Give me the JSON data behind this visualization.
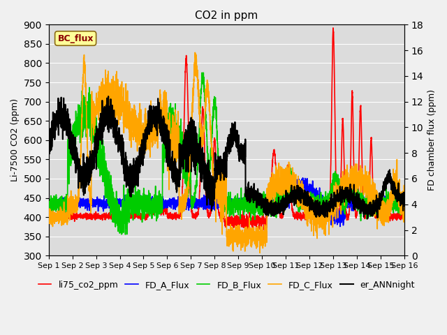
{
  "title": "CO2 in ppm",
  "ylabel_left": "Li-7500 CO2 (ppm)",
  "ylabel_right": "FD chamber flux (ppm)",
  "ylim_left": [
    300,
    900
  ],
  "ylim_right": [
    0,
    18
  ],
  "yticks_left": [
    300,
    350,
    400,
    450,
    500,
    550,
    600,
    650,
    700,
    750,
    800,
    850,
    900
  ],
  "yticks_right": [
    0,
    2,
    4,
    6,
    8,
    10,
    12,
    14,
    16,
    18
  ],
  "xtick_labels": [
    "Sep 1",
    "Sep 2",
    "Sep 3",
    "Sep 4",
    "Sep 5",
    "Sep 6",
    "Sep 7",
    "Sep 8",
    "Sep 9",
    "Sep 10",
    "Sep 11",
    "Sep 12",
    "Sep 13",
    "Sep 14",
    "Sep 15",
    "Sep 16"
  ],
  "legend_entries": [
    "li75_co2_ppm",
    "FD_A_Flux",
    "FD_B_Flux",
    "FD_C_Flux",
    "er_ANNnight"
  ],
  "line_colors": [
    "#ff0000",
    "#0000ff",
    "#00cc00",
    "#ffa500",
    "#000000"
  ],
  "line_widths": [
    1.2,
    1.2,
    1.2,
    1.2,
    1.5
  ],
  "bc_flux_label": "BC_flux",
  "background_color": "#dcdcdc",
  "fig_facecolor": "#f0f0f0",
  "title_fontsize": 11,
  "axis_fontsize": 9,
  "tick_fontsize": 8,
  "legend_fontsize": 9,
  "grid_color": "#ffffff",
  "n_points": 3600
}
